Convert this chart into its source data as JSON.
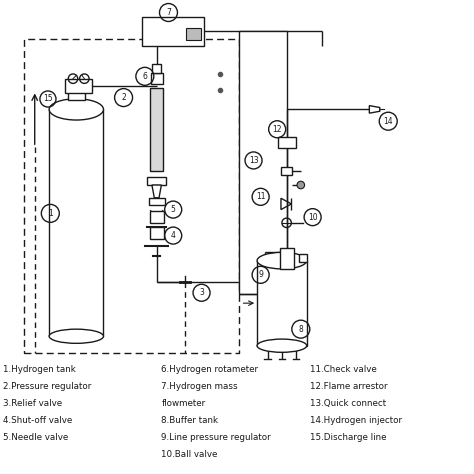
{
  "bg_color": "#ffffff",
  "lc": "#1a1a1a",
  "legend": [
    [
      "1.Hydrogen tank",
      "6.Hydrogen rotameter",
      "11.Check valve"
    ],
    [
      "2.Pressure regulator",
      "7.Hydrogen mass",
      "12.Flame arrestor"
    ],
    [
      "3.Relief valve",
      "flowmeter",
      "13.Quick connect"
    ],
    [
      "4.Shut-off valve",
      "8.Buffer tank",
      "14.Hydrogen injector"
    ],
    [
      "5.Needle valve",
      "9.Line pressure regulator",
      "15.Discharge line"
    ],
    [
      "",
      "10.Ball valve",
      ""
    ]
  ],
  "figsize": [
    4.74,
    4.74
  ],
  "dpi": 100
}
